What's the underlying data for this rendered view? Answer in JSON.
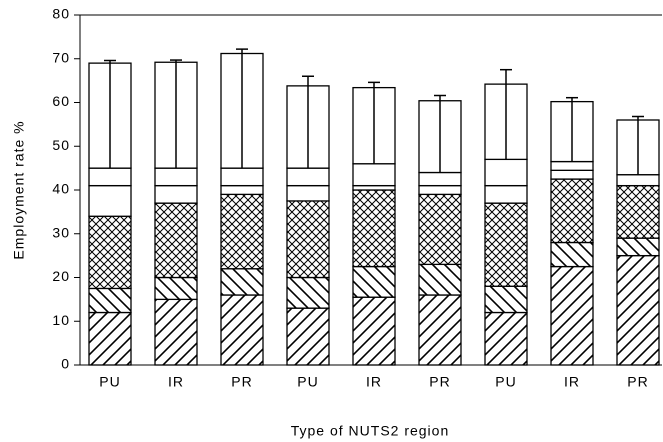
{
  "chart_data": {
    "type": "stacked-bar",
    "x_label": "Type of NUTS2 region",
    "y_label": "Employment rate %",
    "categories": [
      "PU",
      "IR",
      "PR",
      "PU",
      "IR",
      "PR",
      "PU",
      "IR",
      "PR"
    ],
    "ylim": [
      0,
      80
    ],
    "yticks": [
      0,
      10,
      20,
      30,
      40,
      50,
      60,
      70,
      80
    ],
    "series": [
      {
        "pattern": "diagonal",
        "values": [
          12,
          15,
          16,
          13,
          15.5,
          16,
          12,
          22.5,
          25
        ]
      },
      {
        "pattern": "back-diagonal",
        "values": [
          5.5,
          5,
          6,
          7,
          7,
          7,
          6,
          5.5,
          4
        ]
      },
      {
        "pattern": "crosshatch",
        "values": [
          16.5,
          17,
          17,
          17.5,
          17.5,
          16,
          19,
          14.5,
          12
        ]
      },
      {
        "pattern": "none",
        "values": [
          7,
          4,
          2,
          3.5,
          1,
          2,
          4,
          2,
          0
        ]
      },
      {
        "pattern": "none",
        "values": [
          4,
          4,
          4,
          4,
          5,
          3,
          6,
          2,
          2.5
        ]
      },
      {
        "pattern": "none",
        "values": [
          24,
          24.2,
          26.2,
          18.8,
          17.4,
          16.4,
          17.2,
          13.7,
          12.5
        ],
        "errors": [
          0.6,
          0.5,
          1,
          2.2,
          1.2,
          1.2,
          3.3,
          0.9,
          0.8
        ]
      }
    ]
  }
}
